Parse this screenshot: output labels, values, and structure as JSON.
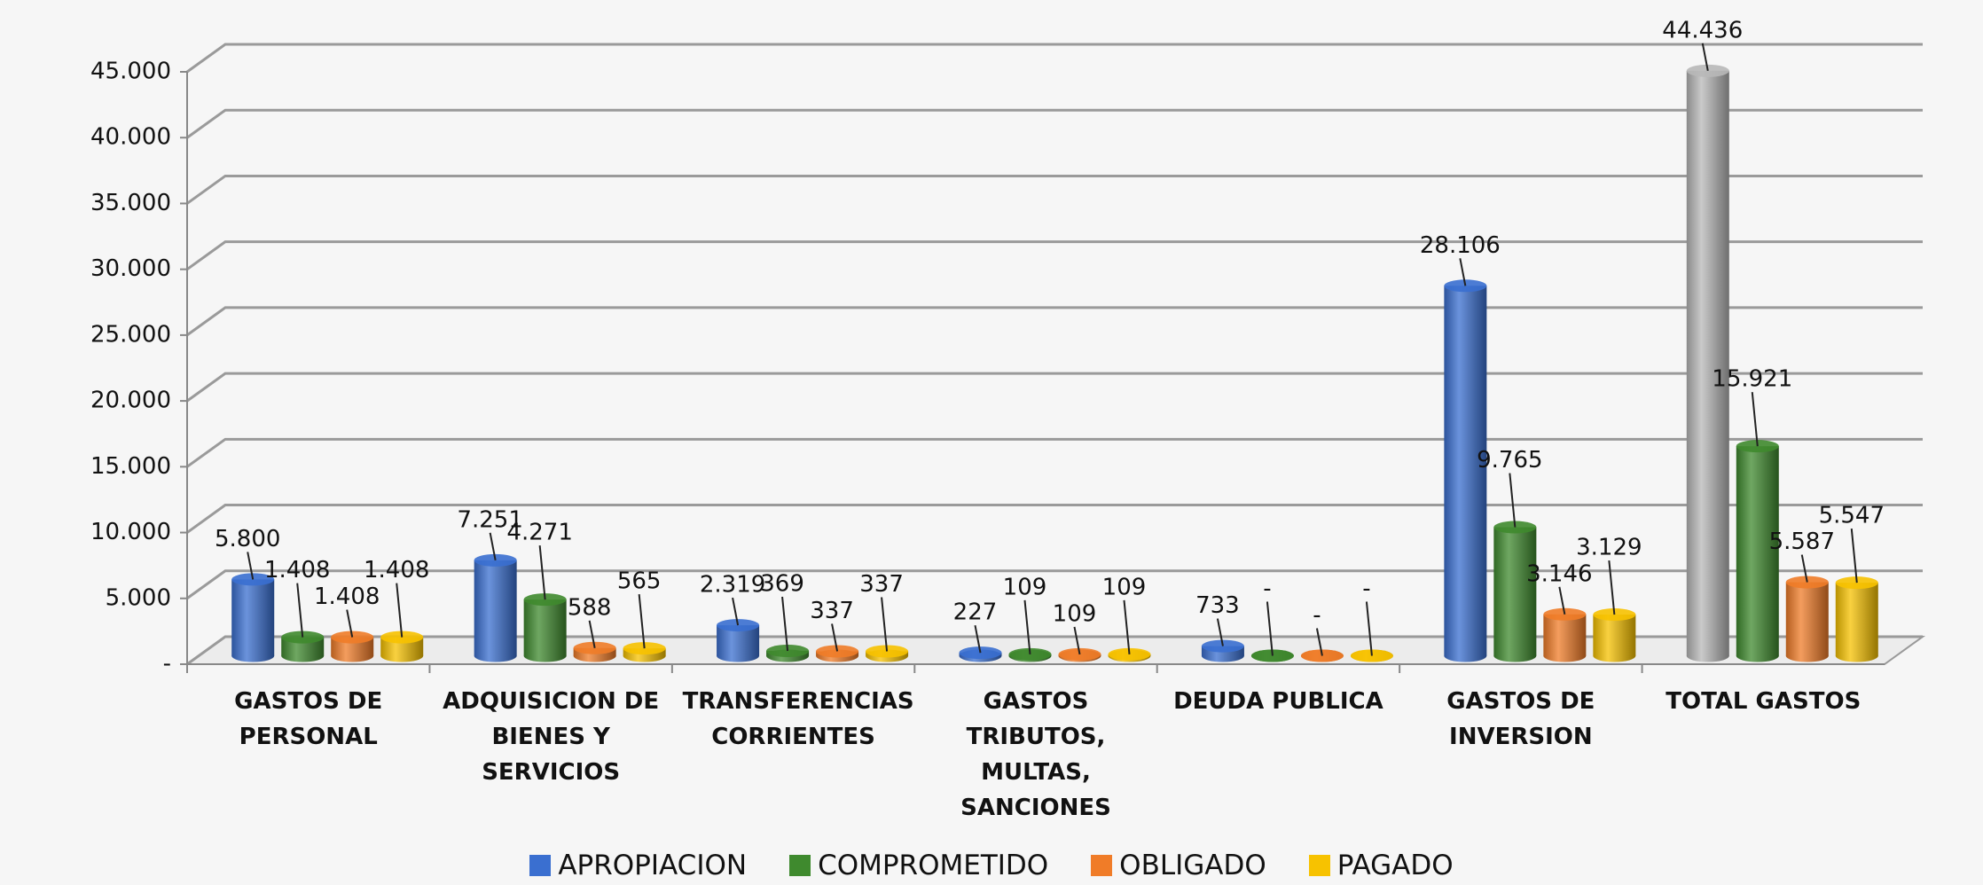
{
  "chart_data": {
    "type": "bar",
    "categories": [
      "GASTOS DE PERSONAL",
      "ADQUISICION DE BIENES Y SERVICIOS",
      "TRANSFERENCIAS CORRIENTES",
      "GASTOS TRIBUTOS, MULTAS, SANCIONES",
      "DEUDA PUBLICA",
      "GASTOS DE INVERSION",
      "TOTAL GASTOS"
    ],
    "series": [
      {
        "name": "APROPIACION",
        "color": "#3a6fd0",
        "colors": [
          "#3a6fd0",
          "#3a6fd0",
          "#3a6fd0",
          "#3a6fd0",
          "#3a6fd0",
          "#3a6fd0",
          "#b8b8b8"
        ],
        "values": [
          5800,
          7251,
          2319,
          227,
          733,
          28106,
          44436
        ],
        "value_labels": [
          "5.800",
          "7.251",
          "2.319",
          "227",
          "733",
          "28.106",
          "44.436"
        ]
      },
      {
        "name": "COMPROMETIDO",
        "color": "#3f8a2e",
        "values": [
          1408,
          4271,
          369,
          109,
          0,
          9765,
          15921
        ],
        "value_labels": [
          "1.408",
          "4.271",
          "369",
          "109",
          "-",
          "9.765",
          "15.921"
        ]
      },
      {
        "name": "OBLIGADO",
        "color": "#f07c28",
        "values": [
          1408,
          588,
          337,
          109,
          0,
          3146,
          5587
        ],
        "value_labels": [
          "1.408",
          "588",
          "337",
          "109",
          "-",
          "3.146",
          "5.587"
        ]
      },
      {
        "name": "PAGADO",
        "color": "#f7c200",
        "values": [
          1408,
          565,
          337,
          109,
          0,
          3129,
          5547
        ],
        "value_labels": [
          "1.408",
          "565",
          "337",
          "109",
          "-",
          "3.129",
          "5.547"
        ]
      }
    ],
    "ylim": [
      0,
      45000
    ],
    "yticks": [
      {
        "value": 0,
        "label": "-"
      },
      {
        "value": 5000,
        "label": "5.000"
      },
      {
        "value": 10000,
        "label": "10.000"
      },
      {
        "value": 15000,
        "label": "15.000"
      },
      {
        "value": 20000,
        "label": "20.000"
      },
      {
        "value": 25000,
        "label": "25.000"
      },
      {
        "value": 30000,
        "label": "30.000"
      },
      {
        "value": 35000,
        "label": "35.000"
      },
      {
        "value": 40000,
        "label": "40.000"
      },
      {
        "value": 45000,
        "label": "45.000"
      }
    ],
    "grid": true,
    "legend": "bottom"
  }
}
